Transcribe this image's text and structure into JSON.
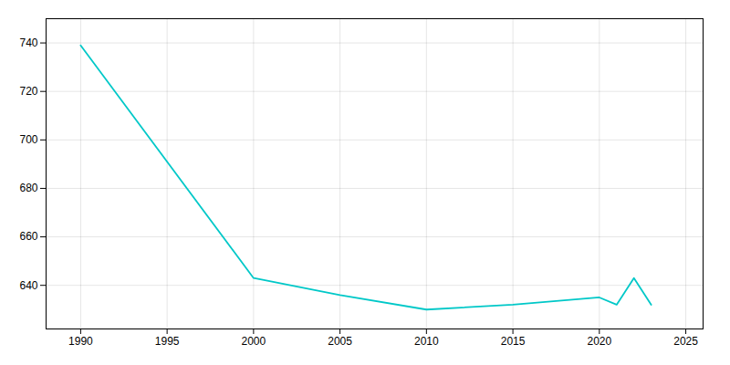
{
  "chart_data": {
    "type": "line",
    "x": [
      1990,
      2000,
      2005,
      2010,
      2015,
      2020,
      2021,
      2022,
      2023
    ],
    "values": [
      739,
      643,
      636,
      630,
      632,
      635,
      632,
      643,
      632
    ],
    "color": "#00C8C8",
    "xlim": [
      1988,
      2026
    ],
    "ylim": [
      622,
      750
    ],
    "xticks": [
      1990,
      1995,
      2000,
      2005,
      2010,
      2015,
      2020,
      2025
    ],
    "yticks": [
      640,
      660,
      680,
      700,
      720,
      740
    ],
    "grid": true
  }
}
